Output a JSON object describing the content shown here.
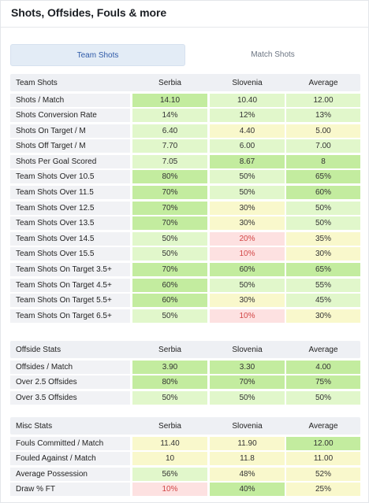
{
  "title": "Shots, Offsides, Fouls & more",
  "tabs": {
    "team": "Team Shots",
    "match": "Match Shots"
  },
  "colors": {
    "dark_green": "#c3ec9f",
    "light_green": "#e1f7cb",
    "yellow": "#f9f8cc",
    "red": "#fde1e1",
    "label_bg": "#f1f2f5",
    "header_bg": "#eef0f4"
  },
  "sections": [
    {
      "title": "Team Shots",
      "columns": [
        "Serbia",
        "Slovenia",
        "Average"
      ],
      "rows": [
        {
          "label": "Shots / Match",
          "values": [
            "14.10",
            "10.40",
            "12.00"
          ],
          "tones": [
            "dg",
            "lg",
            "lg"
          ]
        },
        {
          "label": "Shots Conversion Rate",
          "values": [
            "14%",
            "12%",
            "13%"
          ],
          "tones": [
            "lg",
            "lg",
            "lg"
          ]
        },
        {
          "label": "Shots On Target / M",
          "values": [
            "6.40",
            "4.40",
            "5.00"
          ],
          "tones": [
            "lg",
            "y",
            "y"
          ]
        },
        {
          "label": "Shots Off Target / M",
          "values": [
            "7.70",
            "6.00",
            "7.00"
          ],
          "tones": [
            "lg",
            "lg",
            "lg"
          ]
        },
        {
          "label": "Shots Per Goal Scored",
          "values": [
            "7.05",
            "8.67",
            "8"
          ],
          "tones": [
            "lg",
            "dg",
            "dg"
          ]
        },
        {
          "label": "Team Shots Over 10.5",
          "values": [
            "80%",
            "50%",
            "65%"
          ],
          "tones": [
            "dg",
            "lg",
            "dg"
          ]
        },
        {
          "label": "Team Shots Over 11.5",
          "values": [
            "70%",
            "50%",
            "60%"
          ],
          "tones": [
            "dg",
            "lg",
            "dg"
          ]
        },
        {
          "label": "Team Shots Over 12.5",
          "values": [
            "70%",
            "30%",
            "50%"
          ],
          "tones": [
            "dg",
            "y",
            "lg"
          ]
        },
        {
          "label": "Team Shots Over 13.5",
          "values": [
            "70%",
            "30%",
            "50%"
          ],
          "tones": [
            "dg",
            "y",
            "lg"
          ]
        },
        {
          "label": "Team Shots Over 14.5",
          "values": [
            "50%",
            "20%",
            "35%"
          ],
          "tones": [
            "lg",
            "r",
            "y"
          ]
        },
        {
          "label": "Team Shots Over 15.5",
          "values": [
            "50%",
            "10%",
            "30%"
          ],
          "tones": [
            "lg",
            "r",
            "y"
          ]
        },
        {
          "label": "Team Shots On Target 3.5+",
          "values": [
            "70%",
            "60%",
            "65%"
          ],
          "tones": [
            "dg",
            "dg",
            "dg"
          ]
        },
        {
          "label": "Team Shots On Target 4.5+",
          "values": [
            "60%",
            "50%",
            "55%"
          ],
          "tones": [
            "dg",
            "lg",
            "lg"
          ]
        },
        {
          "label": "Team Shots On Target 5.5+",
          "values": [
            "60%",
            "30%",
            "45%"
          ],
          "tones": [
            "dg",
            "y",
            "lg"
          ]
        },
        {
          "label": "Team Shots On Target 6.5+",
          "values": [
            "50%",
            "10%",
            "30%"
          ],
          "tones": [
            "lg",
            "r",
            "y"
          ]
        }
      ]
    },
    {
      "title": "Offside Stats",
      "columns": [
        "Serbia",
        "Slovenia",
        "Average"
      ],
      "rows": [
        {
          "label": "Offsides / Match",
          "values": [
            "3.90",
            "3.30",
            "4.00"
          ],
          "tones": [
            "dg",
            "dg",
            "dg"
          ]
        },
        {
          "label": "Over 2.5 Offsides",
          "values": [
            "80%",
            "70%",
            "75%"
          ],
          "tones": [
            "dg",
            "dg",
            "dg"
          ]
        },
        {
          "label": "Over 3.5 Offsides",
          "values": [
            "50%",
            "50%",
            "50%"
          ],
          "tones": [
            "lg",
            "lg",
            "lg"
          ]
        }
      ]
    },
    {
      "title": "Misc Stats",
      "columns": [
        "Serbia",
        "Slovenia",
        "Average"
      ],
      "rows": [
        {
          "label": "Fouls Committed / Match",
          "values": [
            "11.40",
            "11.90",
            "12.00"
          ],
          "tones": [
            "y",
            "y",
            "dg"
          ]
        },
        {
          "label": "Fouled Against / Match",
          "values": [
            "10",
            "11.8",
            "11.00"
          ],
          "tones": [
            "y",
            "y",
            "y"
          ]
        },
        {
          "label": "Average Possession",
          "values": [
            "56%",
            "48%",
            "52%"
          ],
          "tones": [
            "lg",
            "y",
            "y"
          ]
        },
        {
          "label": "Draw % FT",
          "values": [
            "10%",
            "40%",
            "25%"
          ],
          "tones": [
            "r",
            "dg",
            "y"
          ]
        }
      ]
    }
  ]
}
